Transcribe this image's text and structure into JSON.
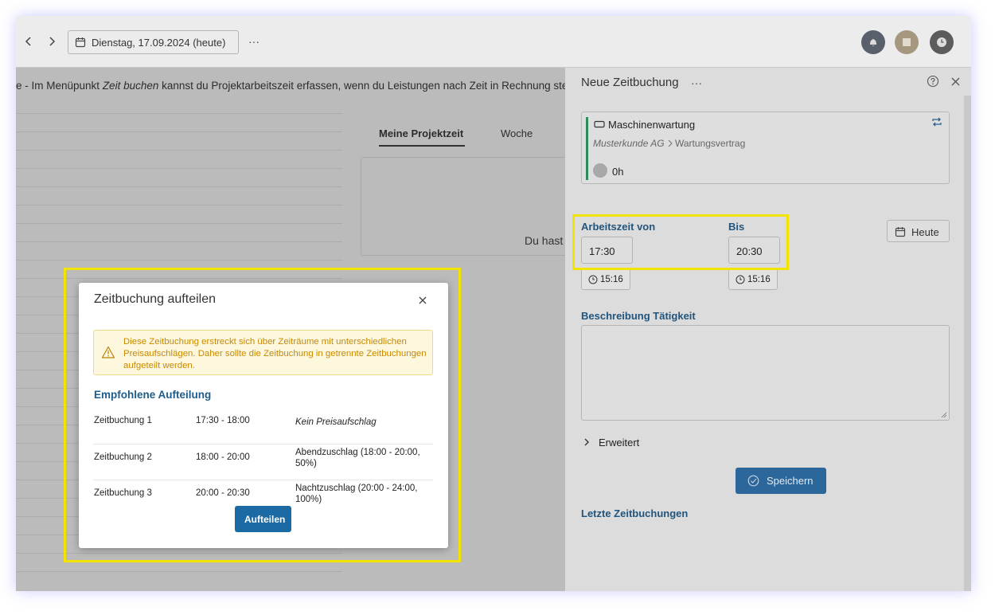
{
  "topbar": {
    "date": "Dienstag, 17.09.2024 (heute)",
    "more": "···"
  },
  "banner": {
    "before": "e - Im Menüpunkt ",
    "emphasis": "Zeit buchen",
    "after": " kannst du Projektarbeitszeit erfassen, wenn du Leistungen nach Zeit in Rechnung ste"
  },
  "tabs": [
    "Meine Projektzeit",
    "Woche"
  ],
  "content": {
    "empty_text": "Du hast"
  },
  "panel": {
    "title": "Neue Zeitbuchung",
    "more": "···",
    "task": {
      "name": "Maschinenwartung",
      "customer": "Musterkunde AG",
      "contract": "Wartungsvertrag",
      "hours": "0h"
    },
    "from_label": "Arbeitszeit von",
    "to_label": "Bis",
    "from_value": "17:30",
    "to_value": "20:30",
    "from_now": "15:16",
    "to_now": "15:16",
    "today_button": "Heute",
    "description_label": "Beschreibung Tätigkeit",
    "advanced": "Erweitert",
    "save_button": "Speichern",
    "recent_heading": "Letzte Zeitbuchungen"
  },
  "modal": {
    "title": "Zeitbuchung aufteilen",
    "warning": "Diese Zeitbuchung erstreckt sich über Zeiträume mit unterschiedlichen Preisaufschlägen. Daher sollte die Zeitbuchung in getrennte Zeitbuchungen aufgeteilt werden.",
    "heading": "Empfohlene Aufteilung",
    "rows": [
      [
        "Zeitbuchung 1",
        "17:30 - 18:00",
        "Kein Preisaufschlag"
      ],
      [
        "Zeitbuchung 2",
        "18:00 - 20:00",
        "Abendzuschlag (18:00 - 20:00, 50%)"
      ],
      [
        "Zeitbuchung 3",
        "20:00 - 20:30",
        "Nachtzuschlag (20:00 - 24:00, 100%)"
      ]
    ],
    "button": "Aufteilen"
  }
}
